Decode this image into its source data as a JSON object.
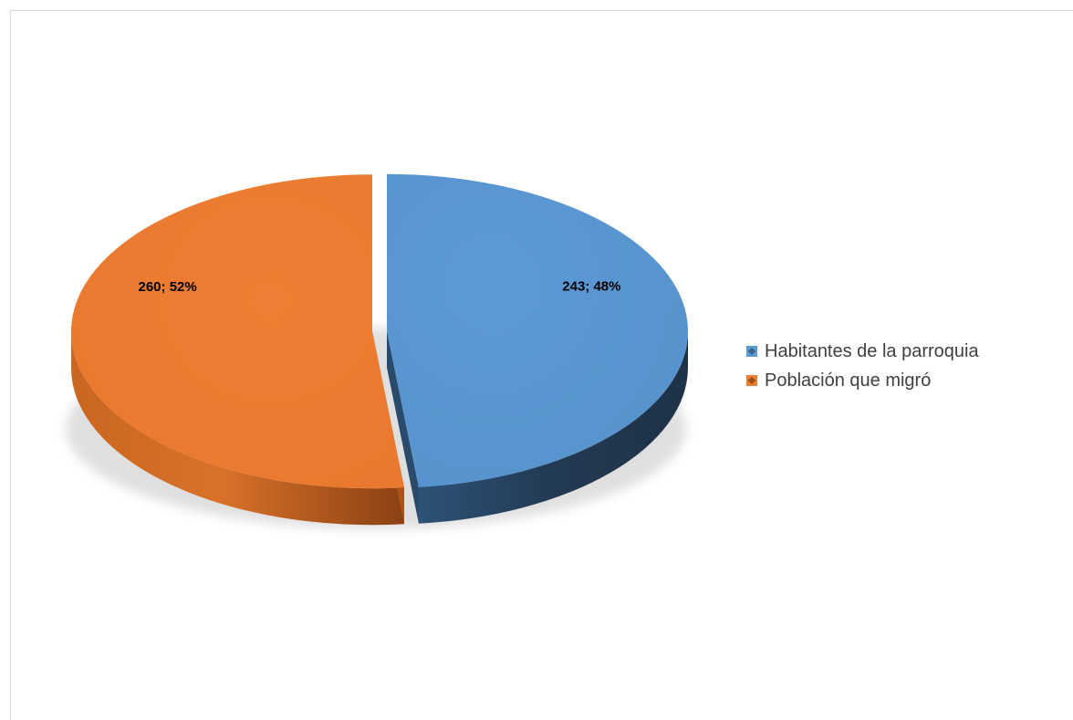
{
  "chart_data": {
    "type": "pie",
    "title": "",
    "categories": [
      "Habitantes de la parroquia",
      "Población que migró"
    ],
    "values": [
      243,
      260
    ],
    "percentages": [
      48,
      52
    ],
    "data_labels": [
      "243; 48%",
      "260; 52%"
    ],
    "colors": [
      "#5b9bd5",
      "#ed7d31"
    ],
    "style": "3d-exploded",
    "legend_position": "right"
  }
}
